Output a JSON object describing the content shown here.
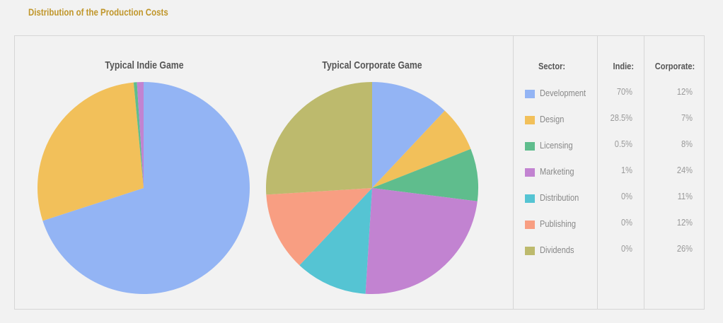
{
  "page": {
    "title": "Distribution of the Production Costs"
  },
  "table": {
    "headers": [
      "Sector:",
      "Indie:",
      "Corporate:"
    ]
  },
  "chart_data": {
    "type": "pie",
    "categories": [
      "Development",
      "Design",
      "Licensing",
      "Marketing",
      "Distribution",
      "Publishing",
      "Dividends"
    ],
    "colors": [
      "#93b4f4",
      "#f2c05a",
      "#5fbd8d",
      "#c283d1",
      "#55c4d3",
      "#f89e82",
      "#bdba6d"
    ],
    "series": [
      {
        "name": "Typical Indie Game",
        "values": [
          70,
          28.5,
          0.5,
          1,
          0,
          0,
          0
        ],
        "labels": [
          "70%",
          "28.5%",
          "0.5%",
          "1%",
          "0%",
          "0%",
          "0%"
        ]
      },
      {
        "name": "Typical Corporate Game",
        "values": [
          12,
          7,
          8,
          24,
          11,
          12,
          26
        ],
        "labels": [
          "12%",
          "7%",
          "8%",
          "24%",
          "11%",
          "12%",
          "26%"
        ]
      }
    ]
  }
}
